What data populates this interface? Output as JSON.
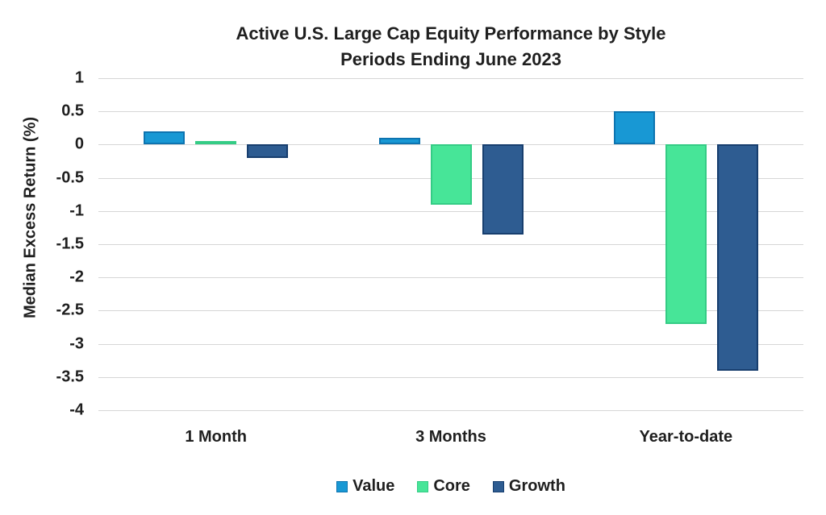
{
  "chart_data": {
    "type": "bar",
    "title": "Active U.S. Large Cap Equity Performance by Style",
    "subtitle": "Periods Ending June 2023",
    "ylabel": "Median Excess Return (%)",
    "xlabel": "",
    "categories": [
      "1 Month",
      "3 Months",
      "Year-to-date"
    ],
    "series": [
      {
        "name": "Value",
        "color": "#1898D4",
        "border_color": "#0D74B0",
        "values": [
          0.2,
          0.1,
          0.5
        ]
      },
      {
        "name": "Core",
        "color": "#47E598",
        "border_color": "#34CC85",
        "values": [
          0.05,
          -0.9,
          -2.7
        ]
      },
      {
        "name": "Growth",
        "color": "#2E5C91",
        "border_color": "#173E6E",
        "values": [
          -0.2,
          -1.35,
          -3.4
        ]
      }
    ],
    "ylim": [
      -4,
      1
    ],
    "ytick_step": 0.5,
    "grid": true,
    "gridline_color": "#d6d6d6",
    "legend_position": "bottom"
  }
}
